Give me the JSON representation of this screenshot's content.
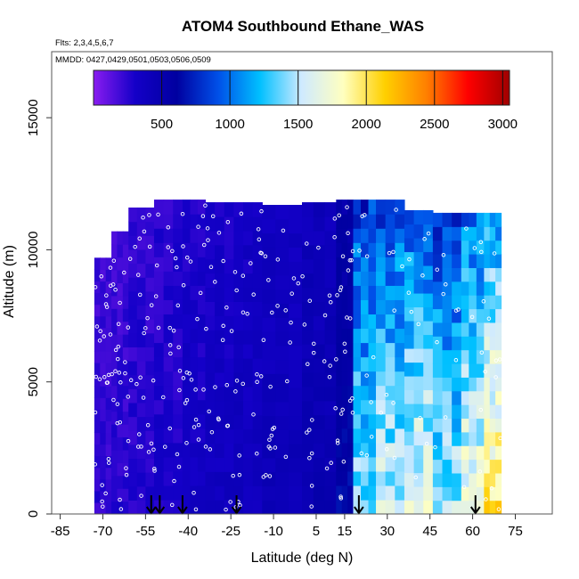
{
  "chart_data": {
    "type": "heatmap",
    "title": "ATOM4 Southbound Ethane_WAS",
    "subtitle_flights": "Flts: 2,3,4,5,6,7",
    "subtitle_dates": "MMDD: 0427,0429,0501,0503,0506,0509",
    "xlabel": "Latitude (deg N)",
    "ylabel": "Altitude (m)",
    "xlim": [
      -88,
      88
    ],
    "ylim": [
      0,
      17500
    ],
    "x_ticks": [
      -85,
      -70,
      -55,
      -40,
      -25,
      -10,
      5,
      15,
      30,
      45,
      60,
      75
    ],
    "x_tick_labels": [
      "-85",
      "-70",
      "-55",
      "-40",
      "-25",
      "-10",
      "5",
      "15",
      "30",
      "45",
      "60",
      "75"
    ],
    "y_ticks": [
      0,
      5000,
      10000,
      15000
    ],
    "y_tick_labels": [
      "0",
      "5000",
      "10000",
      "15000"
    ],
    "colorbar": {
      "range": [
        0,
        3050
      ],
      "ticks": [
        500,
        1000,
        1500,
        2000,
        2500,
        3000
      ],
      "tick_labels": [
        "500",
        "1000",
        "1500",
        "2000",
        "2500",
        "3000"
      ],
      "colors": [
        "#8a1cf0",
        "#1400c8",
        "#0000a0",
        "#0050e8",
        "#00c0ff",
        "#cfeaff",
        "#ffffc0",
        "#ffd000",
        "#ff8000",
        "#ff0000",
        "#a00000"
      ]
    },
    "sounding_latitudes": [
      -53,
      -50,
      -42,
      -23,
      20,
      61
    ],
    "lat_bands": [
      {
        "lat": [
          -73,
          -67
        ],
        "alt_max": 9700,
        "value": 230
      },
      {
        "lat": [
          -67,
          -61
        ],
        "alt_max": 10700,
        "value": 240
      },
      {
        "lat": [
          -61,
          -52
        ],
        "alt_max": 11600,
        "value": 260
      },
      {
        "lat": [
          -52,
          -42
        ],
        "alt_max": 11900,
        "value": 290
      },
      {
        "lat": [
          -42,
          -34
        ],
        "alt_max": 11900,
        "value": 330
      },
      {
        "lat": [
          -34,
          -24
        ],
        "alt_max": 11800,
        "value": 360
      },
      {
        "lat": [
          -24,
          -14
        ],
        "alt_max": 11800,
        "value": 380
      },
      {
        "lat": [
          -14,
          0
        ],
        "alt_max": 11700,
        "value": 420
      },
      {
        "lat": [
          0,
          12
        ],
        "alt_max": 11800,
        "value": 470
      },
      {
        "lat": [
          12,
          18
        ],
        "alt_max": 11900,
        "value": 620
      },
      {
        "lat": [
          18,
          26
        ],
        "alt_max": 11900,
        "value": 1150
      },
      {
        "lat": [
          26,
          36
        ],
        "alt_max": 11900,
        "value": 1250
      },
      {
        "lat": [
          36,
          46
        ],
        "alt_max": 11500,
        "value": 1350
      },
      {
        "lat": [
          46,
          56
        ],
        "alt_max": 11400,
        "value": 1200
      },
      {
        "lat": [
          56,
          64
        ],
        "alt_max": 11400,
        "value": 1400
      },
      {
        "lat": [
          64,
          70
        ],
        "alt_max": 11400,
        "value": 1600
      }
    ]
  }
}
